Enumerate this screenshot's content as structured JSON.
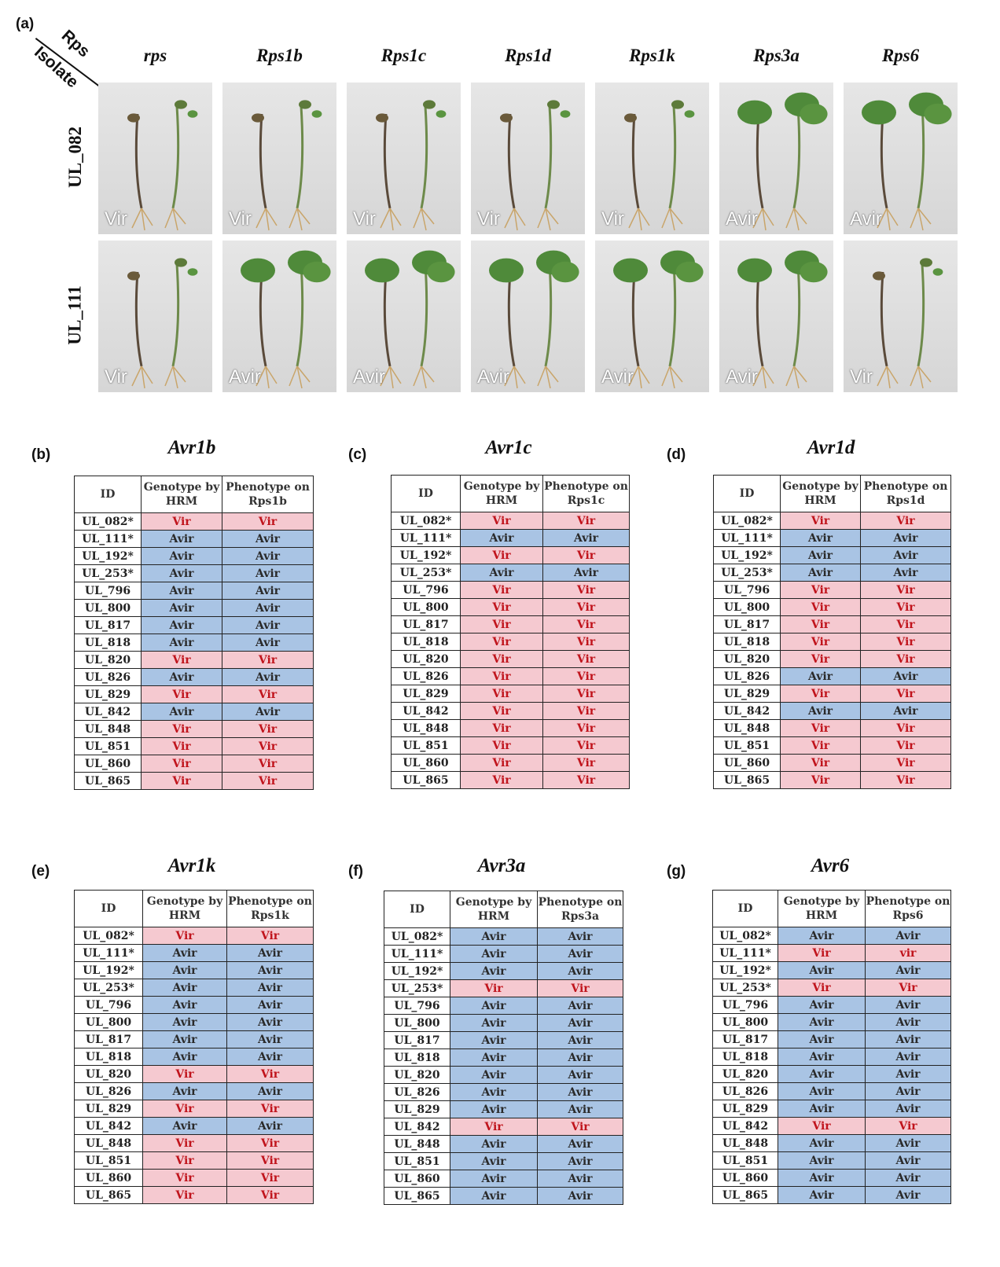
{
  "panel_a": {
    "label": "(a)",
    "corner_top": "Rps",
    "corner_bottom": "Isolate",
    "columns": [
      "rps",
      "Rps1b",
      "Rps1c",
      "Rps1d",
      "Rps1k",
      "Rps3a",
      "Rps6"
    ],
    "rows": [
      {
        "isolate": "UL_082",
        "results": [
          "Vir",
          "Vir",
          "Vir",
          "Vir",
          "Vir",
          "Avir",
          "Avir"
        ]
      },
      {
        "isolate": "UL_111",
        "results": [
          "Vir",
          "Avir",
          "Avir",
          "Avir",
          "Avir",
          "Avir",
          "Vir"
        ]
      }
    ]
  },
  "colors": {
    "avir": "#a9c4e4",
    "vir": "#f5c9d0",
    "vir_text": "#c0141c"
  },
  "tables": [
    {
      "label": "(b)",
      "title": "Avr1b",
      "headers": [
        "ID",
        "Genotype by HRM",
        "Phenotype on Rps1b"
      ],
      "rows": [
        [
          "UL_082*",
          "Vir",
          "Vir"
        ],
        [
          "UL_111*",
          "Avir",
          "Avir"
        ],
        [
          "UL_192*",
          "Avir",
          "Avir"
        ],
        [
          "UL_253*",
          "Avir",
          "Avir"
        ],
        [
          "UL_796",
          "Avir",
          "Avir"
        ],
        [
          "UL_800",
          "Avir",
          "Avir"
        ],
        [
          "UL_817",
          "Avir",
          "Avir"
        ],
        [
          "UL_818",
          "Avir",
          "Avir"
        ],
        [
          "UL_820",
          "Vir",
          "Vir"
        ],
        [
          "UL_826",
          "Avir",
          "Avir"
        ],
        [
          "UL_829",
          "Vir",
          "Vir"
        ],
        [
          "UL_842",
          "Avir",
          "Avir"
        ],
        [
          "UL_848",
          "Vir",
          "Vir"
        ],
        [
          "UL_851",
          "Vir",
          "Vir"
        ],
        [
          "UL_860",
          "Vir",
          "Vir"
        ],
        [
          "UL_865",
          "Vir",
          "Vir"
        ]
      ]
    },
    {
      "label": "(c)",
      "title": "Avr1c",
      "headers": [
        "ID",
        "Genotype by HRM",
        "Phenotype on Rps1c"
      ],
      "rows": [
        [
          "UL_082*",
          "Vir",
          "Vir"
        ],
        [
          "UL_111*",
          "Avir",
          "Avir"
        ],
        [
          "UL_192*",
          "Vir",
          "Vir"
        ],
        [
          "UL_253*",
          "Avir",
          "Avir"
        ],
        [
          "UL_796",
          "Vir",
          "Vir"
        ],
        [
          "UL_800",
          "Vir",
          "Vir"
        ],
        [
          "UL_817",
          "Vir",
          "Vir"
        ],
        [
          "UL_818",
          "Vir",
          "Vir"
        ],
        [
          "UL_820",
          "Vir",
          "Vir"
        ],
        [
          "UL_826",
          "Vir",
          "Vir"
        ],
        [
          "UL_829",
          "Vir",
          "Vir"
        ],
        [
          "UL_842",
          "Vir",
          "Vir"
        ],
        [
          "UL_848",
          "Vir",
          "Vir"
        ],
        [
          "UL_851",
          "Vir",
          "Vir"
        ],
        [
          "UL_860",
          "Vir",
          "Vir"
        ],
        [
          "UL_865",
          "Vir",
          "Vir"
        ]
      ]
    },
    {
      "label": "(d)",
      "title": "Avr1d",
      "headers": [
        "ID",
        "Genotype by HRM",
        "Phenotype on Rps1d"
      ],
      "rows": [
        [
          "UL_082*",
          "Vir",
          "Vir"
        ],
        [
          "UL_111*",
          "Avir",
          "Avir"
        ],
        [
          "UL_192*",
          "Avir",
          "Avir"
        ],
        [
          "UL_253*",
          "Avir",
          "Avir"
        ],
        [
          "UL_796",
          "Vir",
          "Vir"
        ],
        [
          "UL_800",
          "Vir",
          "Vir"
        ],
        [
          "UL_817",
          "Vir",
          "Vir"
        ],
        [
          "UL_818",
          "Vir",
          "Vir"
        ],
        [
          "UL_820",
          "Vir",
          "Vir"
        ],
        [
          "UL_826",
          "Avir",
          "Avir"
        ],
        [
          "UL_829",
          "Vir",
          "Vir"
        ],
        [
          "UL_842",
          "Avir",
          "Avir"
        ],
        [
          "UL_848",
          "Vir",
          "Vir"
        ],
        [
          "UL_851",
          "Vir",
          "Vir"
        ],
        [
          "UL_860",
          "Vir",
          "Vir"
        ],
        [
          "UL_865",
          "Vir",
          "Vir"
        ]
      ]
    },
    {
      "label": "(e)",
      "title": "Avr1k",
      "headers": [
        "ID",
        "Genotype by HRM",
        "Phenotype on Rps1k"
      ],
      "rows": [
        [
          "UL_082*",
          "Vir",
          "Vir"
        ],
        [
          "UL_111*",
          "Avir",
          "Avir"
        ],
        [
          "UL_192*",
          "Avir",
          "Avir"
        ],
        [
          "UL_253*",
          "Avir",
          "Avir"
        ],
        [
          "UL_796",
          "Avir",
          "Avir"
        ],
        [
          "UL_800",
          "Avir",
          "Avir"
        ],
        [
          "UL_817",
          "Avir",
          "Avir"
        ],
        [
          "UL_818",
          "Avir",
          "Avir"
        ],
        [
          "UL_820",
          "Vir",
          "Vir"
        ],
        [
          "UL_826",
          "Avir",
          "Avir"
        ],
        [
          "UL_829",
          "Vir",
          "Vir"
        ],
        [
          "UL_842",
          "Avir",
          "Avir"
        ],
        [
          "UL_848",
          "Vir",
          "Vir"
        ],
        [
          "UL_851",
          "Vir",
          "Vir"
        ],
        [
          "UL_860",
          "Vir",
          "Vir"
        ],
        [
          "UL_865",
          "Vir",
          "Vir"
        ]
      ]
    },
    {
      "label": "(f)",
      "title": "Avr3a",
      "headers": [
        "ID",
        "Genotype by HRM",
        "Phenotype on Rps3a"
      ],
      "rows": [
        [
          "UL_082*",
          "Avir",
          "Avir"
        ],
        [
          "UL_111*",
          "Avir",
          "Avir"
        ],
        [
          "UL_192*",
          "Avir",
          "Avir"
        ],
        [
          "UL_253*",
          "Vir",
          "Vir"
        ],
        [
          "UL_796",
          "Avir",
          "Avir"
        ],
        [
          "UL_800",
          "Avir",
          "Avir"
        ],
        [
          "UL_817",
          "Avir",
          "Avir"
        ],
        [
          "UL_818",
          "Avir",
          "Avir"
        ],
        [
          "UL_820",
          "Avir",
          "Avir"
        ],
        [
          "UL_826",
          "Avir",
          "Avir"
        ],
        [
          "UL_829",
          "Avir",
          "Avir"
        ],
        [
          "UL_842",
          "Vir",
          "Vir"
        ],
        [
          "UL_848",
          "Avir",
          "Avir"
        ],
        [
          "UL_851",
          "Avir",
          "Avir"
        ],
        [
          "UL_860",
          "Avir",
          "Avir"
        ],
        [
          "UL_865",
          "Avir",
          "Avir"
        ]
      ]
    },
    {
      "label": "(g)",
      "title": "Avr6",
      "headers": [
        "ID",
        "Genotype by HRM",
        "Phenotype on Rps6"
      ],
      "rows": [
        [
          "UL_082*",
          "Avir",
          "Avir"
        ],
        [
          "UL_111*",
          "Vir",
          "vir"
        ],
        [
          "UL_192*",
          "Avir",
          "Avir"
        ],
        [
          "UL_253*",
          "Vir",
          "Vir"
        ],
        [
          "UL_796",
          "Avir",
          "Avir"
        ],
        [
          "UL_800",
          "Avir",
          "Avir"
        ],
        [
          "UL_817",
          "Avir",
          "Avir"
        ],
        [
          "UL_818",
          "Avir",
          "Avir"
        ],
        [
          "UL_820",
          "Avir",
          "Avir"
        ],
        [
          "UL_826",
          "Avir",
          "Avir"
        ],
        [
          "UL_829",
          "Avir",
          "Avir"
        ],
        [
          "UL_842",
          "Vir",
          "Vir"
        ],
        [
          "UL_848",
          "Avir",
          "Avir"
        ],
        [
          "UL_851",
          "Avir",
          "Avir"
        ],
        [
          "UL_860",
          "Avir",
          "Avir"
        ],
        [
          "UL_865",
          "Avir",
          "Avir"
        ]
      ]
    }
  ]
}
